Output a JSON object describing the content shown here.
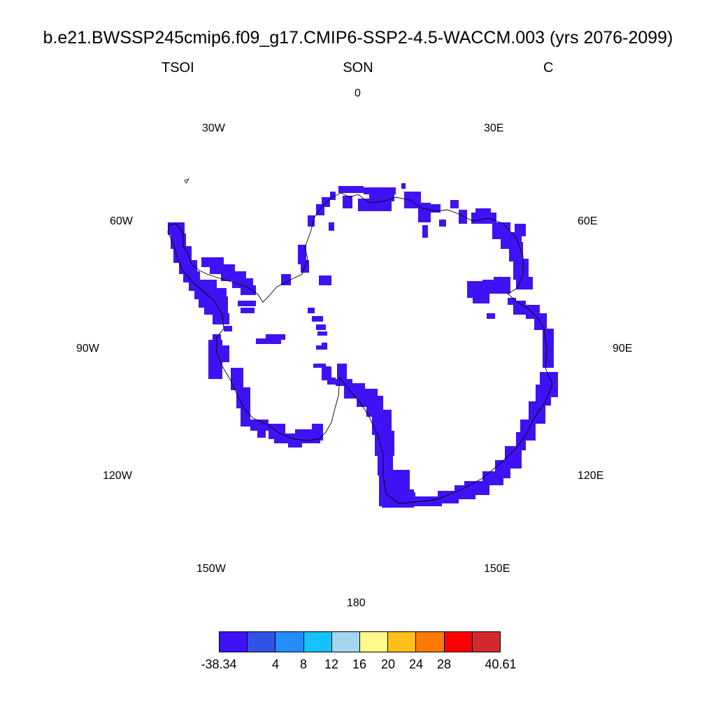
{
  "title": "b.e21.BWSSP245cmip6.f09_g17.CMIP6-SSP2-4.5-WACCM.003 (yrs 2076-2099)",
  "left_label": "TSOI",
  "center_label": "SON",
  "right_label": "C",
  "longitude_labels": {
    "lon_0": "0",
    "lon_30e": "30E",
    "lon_60e": "60E",
    "lon_90e": "90E",
    "lon_120e": "120E",
    "lon_150e": "150E",
    "lon_180": "180",
    "lon_150w": "150W",
    "lon_120w": "120W",
    "lon_90w": "90W",
    "lon_60w": "60W",
    "lon_30w": "30W"
  },
  "colorbar": {
    "colors": [
      "#3f12f5",
      "#3252e6",
      "#238dfb",
      "#17c1fb",
      "#a4d6ef",
      "#fffa89",
      "#fdc01a",
      "#fd7a07",
      "#fd0003",
      "#d4282d"
    ],
    "labels": [
      "-38.34",
      "4",
      "8",
      "12",
      "16",
      "20",
      "24",
      "28",
      "40.61"
    ]
  },
  "field_color": "#3f12f5"
}
